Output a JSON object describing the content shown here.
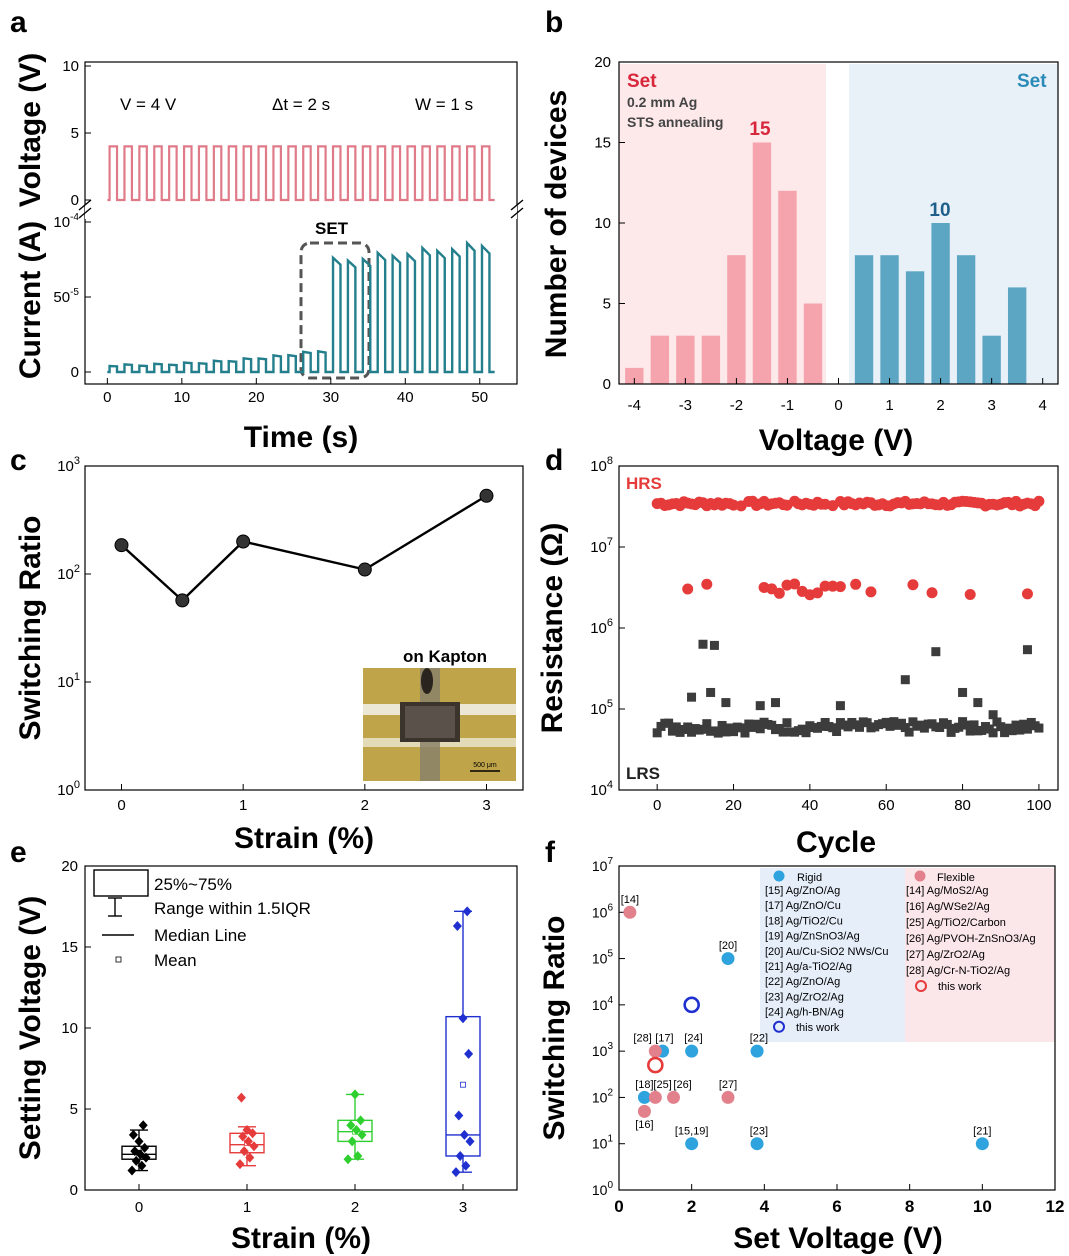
{
  "chart_data": [
    {
      "panel": "a",
      "type": "line",
      "title": "",
      "xlabel": "Time (s)",
      "xticks": [
        "0",
        "10",
        "20",
        "30",
        "40",
        "50"
      ],
      "xlim": [
        -3,
        55
      ],
      "top_axis": {
        "ylabel": "Voltage (V)",
        "yticks": [
          "0",
          "5",
          "10"
        ],
        "ylim": [
          0,
          10
        ]
      },
      "bottom_axis": {
        "ylabel": "Current (A)",
        "yticks": [
          "0",
          "50-5",
          "10-4"
        ],
        "ylim": [
          0,
          1.0
        ]
      },
      "annotations": {
        "v": "V = 4 V",
        "dt": "Δt = 2 s",
        "w": "W = 1 s",
        "set": "SET"
      },
      "pulse": {
        "period_s": 2,
        "on_s": 1,
        "count": 26,
        "amplitude_V": 4
      },
      "series": [
        {
          "name": "Voltage",
          "color": "#e07a88"
        },
        {
          "name": "Current",
          "color": "#237f8c"
        }
      ]
    },
    {
      "panel": "b",
      "type": "bar",
      "xlabel": "Voltage (V)",
      "ylabel": "Number of devices",
      "xlim": [
        -4.3,
        4.3
      ],
      "ylim": [
        0,
        20
      ],
      "xticks": [
        "-4",
        "-3",
        "-2",
        "-1",
        "0",
        "1",
        "2",
        "3",
        "4"
      ],
      "yticks": [
        "0",
        "5",
        "10",
        "15",
        "20"
      ],
      "series": [
        {
          "name": "Set",
          "color": "#f5a3ad",
          "x": [
            -4,
            -3.5,
            -3,
            -2.5,
            -2,
            -1.5,
            -1,
            -0.5
          ],
          "values": [
            1,
            3,
            3,
            3,
            8,
            15,
            12,
            5
          ]
        },
        {
          "name": "Set",
          "color": "#5da6c3",
          "x": [
            0.5,
            1,
            1.5,
            2,
            2.5,
            3,
            3.5
          ],
          "values": [
            8,
            8,
            7,
            10,
            8,
            3,
            6
          ]
        }
      ],
      "annotations": {
        "left_sub1": "0.2 mm Ag",
        "left_sub2": "STS annealing",
        "peak_left": "15",
        "peak_right": "10"
      }
    },
    {
      "panel": "c",
      "type": "line",
      "xlabel": "Strain (%)",
      "ylabel": "Switching Ratio",
      "yscale": "log",
      "xlim": [
        -0.3,
        3.3
      ],
      "ylim": [
        1,
        1000
      ],
      "xticks": [
        "0",
        "1",
        "2",
        "3"
      ],
      "yticks": [
        "10^0",
        "10^1",
        "10^2",
        "10^3"
      ],
      "x": [
        0,
        0.5,
        1,
        2,
        3
      ],
      "y": [
        185,
        57,
        200,
        110,
        530
      ],
      "inset_label": "on Kapton",
      "inset_scale": "500 μm"
    },
    {
      "panel": "d",
      "type": "scatter",
      "xlabel": "Cycle",
      "ylabel": "Resistance (Ω)",
      "yscale": "log",
      "xlim": [
        -10,
        105
      ],
      "ylim": [
        10000,
        100000000
      ],
      "xticks": [
        "0",
        "20",
        "40",
        "60",
        "80",
        "100"
      ],
      "yticks": [
        "10^4",
        "10^5",
        "10^6",
        "10^7",
        "10^8"
      ],
      "series": [
        {
          "name": "HRS",
          "color": "#e63b3b"
        },
        {
          "name": "LRS",
          "color": "#3c3c3c"
        }
      ]
    },
    {
      "panel": "e",
      "type": "box",
      "xlabel": "Strain (%)",
      "ylabel": "Setting Voltage (V)",
      "xlim": [
        -0.5,
        3.5
      ],
      "ylim": [
        0,
        20
      ],
      "xticks": [
        "0",
        "1",
        "2",
        "3"
      ],
      "yticks": [
        "0",
        "5",
        "10",
        "15",
        "20"
      ],
      "legend": {
        "box": "25%~75%",
        "range": "Range within 1.5IQR",
        "median": "Median Line",
        "mean": "Mean"
      },
      "groups": [
        {
          "x": 0,
          "color": "#000000",
          "q1": 1.9,
          "q3": 2.7,
          "median": 2.2,
          "mean": 2.3,
          "whisk_lo": 1.2,
          "whisk_hi": 3.7,
          "points": [
            1.2,
            1.5,
            1.8,
            2.0,
            2.2,
            2.4,
            2.6,
            3.0,
            3.4,
            4.0
          ]
        },
        {
          "x": 1,
          "color": "#e63b3b",
          "q1": 2.3,
          "q3": 3.5,
          "median": 2.8,
          "mean": 2.9,
          "whisk_lo": 1.5,
          "whisk_hi": 3.9,
          "points": [
            1.6,
            2.0,
            2.4,
            2.7,
            3.0,
            3.3,
            3.5,
            3.7,
            5.7
          ]
        },
        {
          "x": 2,
          "color": "#2fcf2f",
          "q1": 3.0,
          "q3": 4.3,
          "median": 3.6,
          "mean": 3.6,
          "whisk_lo": 1.9,
          "whisk_hi": 5.9,
          "points": [
            1.9,
            2.1,
            3.0,
            3.4,
            3.7,
            4.0,
            4.3,
            5.9
          ]
        },
        {
          "x": 3,
          "color": "#1f2fd0",
          "q1": 2.1,
          "q3": 10.7,
          "median": 3.4,
          "mean": 6.5,
          "whisk_lo": 1.1,
          "whisk_hi": 17.2,
          "points": [
            1.1,
            1.5,
            2.1,
            3.0,
            3.4,
            4.6,
            8.4,
            10.6,
            16.3,
            17.2
          ]
        }
      ]
    },
    {
      "panel": "f",
      "type": "scatter",
      "xlabel": "Set Voltage (V)",
      "ylabel": "Switching Ratio",
      "yscale": "log",
      "xlim": [
        0,
        12
      ],
      "ylim": [
        1,
        10000000
      ],
      "xticks": [
        "0",
        "2",
        "4",
        "6",
        "8",
        "10",
        "12"
      ],
      "yticks": [
        "10^0",
        "10^1",
        "10^2",
        "10^3",
        "10^4",
        "10^5",
        "10^6",
        "10^7"
      ],
      "series": [
        {
          "name": "Rigid",
          "color": "#2ea3dd"
        },
        {
          "name": "Flexible",
          "color": "#e2808c"
        }
      ],
      "rigid_legend": [
        "[15] Ag/ZnO/Ag",
        "[17] Ag/ZnO/Cu",
        "[18] Ag/TiO2/Cu",
        "[19] Ag/ZnSnO3/Ag",
        "[20] Au/Cu-SiO2 NWs/Cu",
        "[21] Ag/a-TiO2/Ag",
        "[22] Ag/ZnO/Ag",
        "[23] Ag/ZrO2/Ag",
        "[24] Ag/h-BN/Ag",
        "this work"
      ],
      "flex_legend": [
        "[14] Ag/MoS2/Ag",
        "[16] Ag/WSe2/Ag",
        "[25] Ag/TiO2/Carbon",
        "[26] Ag/PVOH-ZnSnO3/Ag",
        "[27] Ag/ZrO2/Ag",
        "[28] Ag/Cr-N-TiO2/Ag",
        "this work"
      ],
      "point_labels": [
        "[14]",
        "[20]",
        "[28]",
        "[17]",
        "[24]",
        "[22]",
        "[18]",
        "[25]",
        "[26]",
        "[27]",
        "[16]",
        "[15,19]",
        "[23]",
        "[21]"
      ]
    }
  ]
}
